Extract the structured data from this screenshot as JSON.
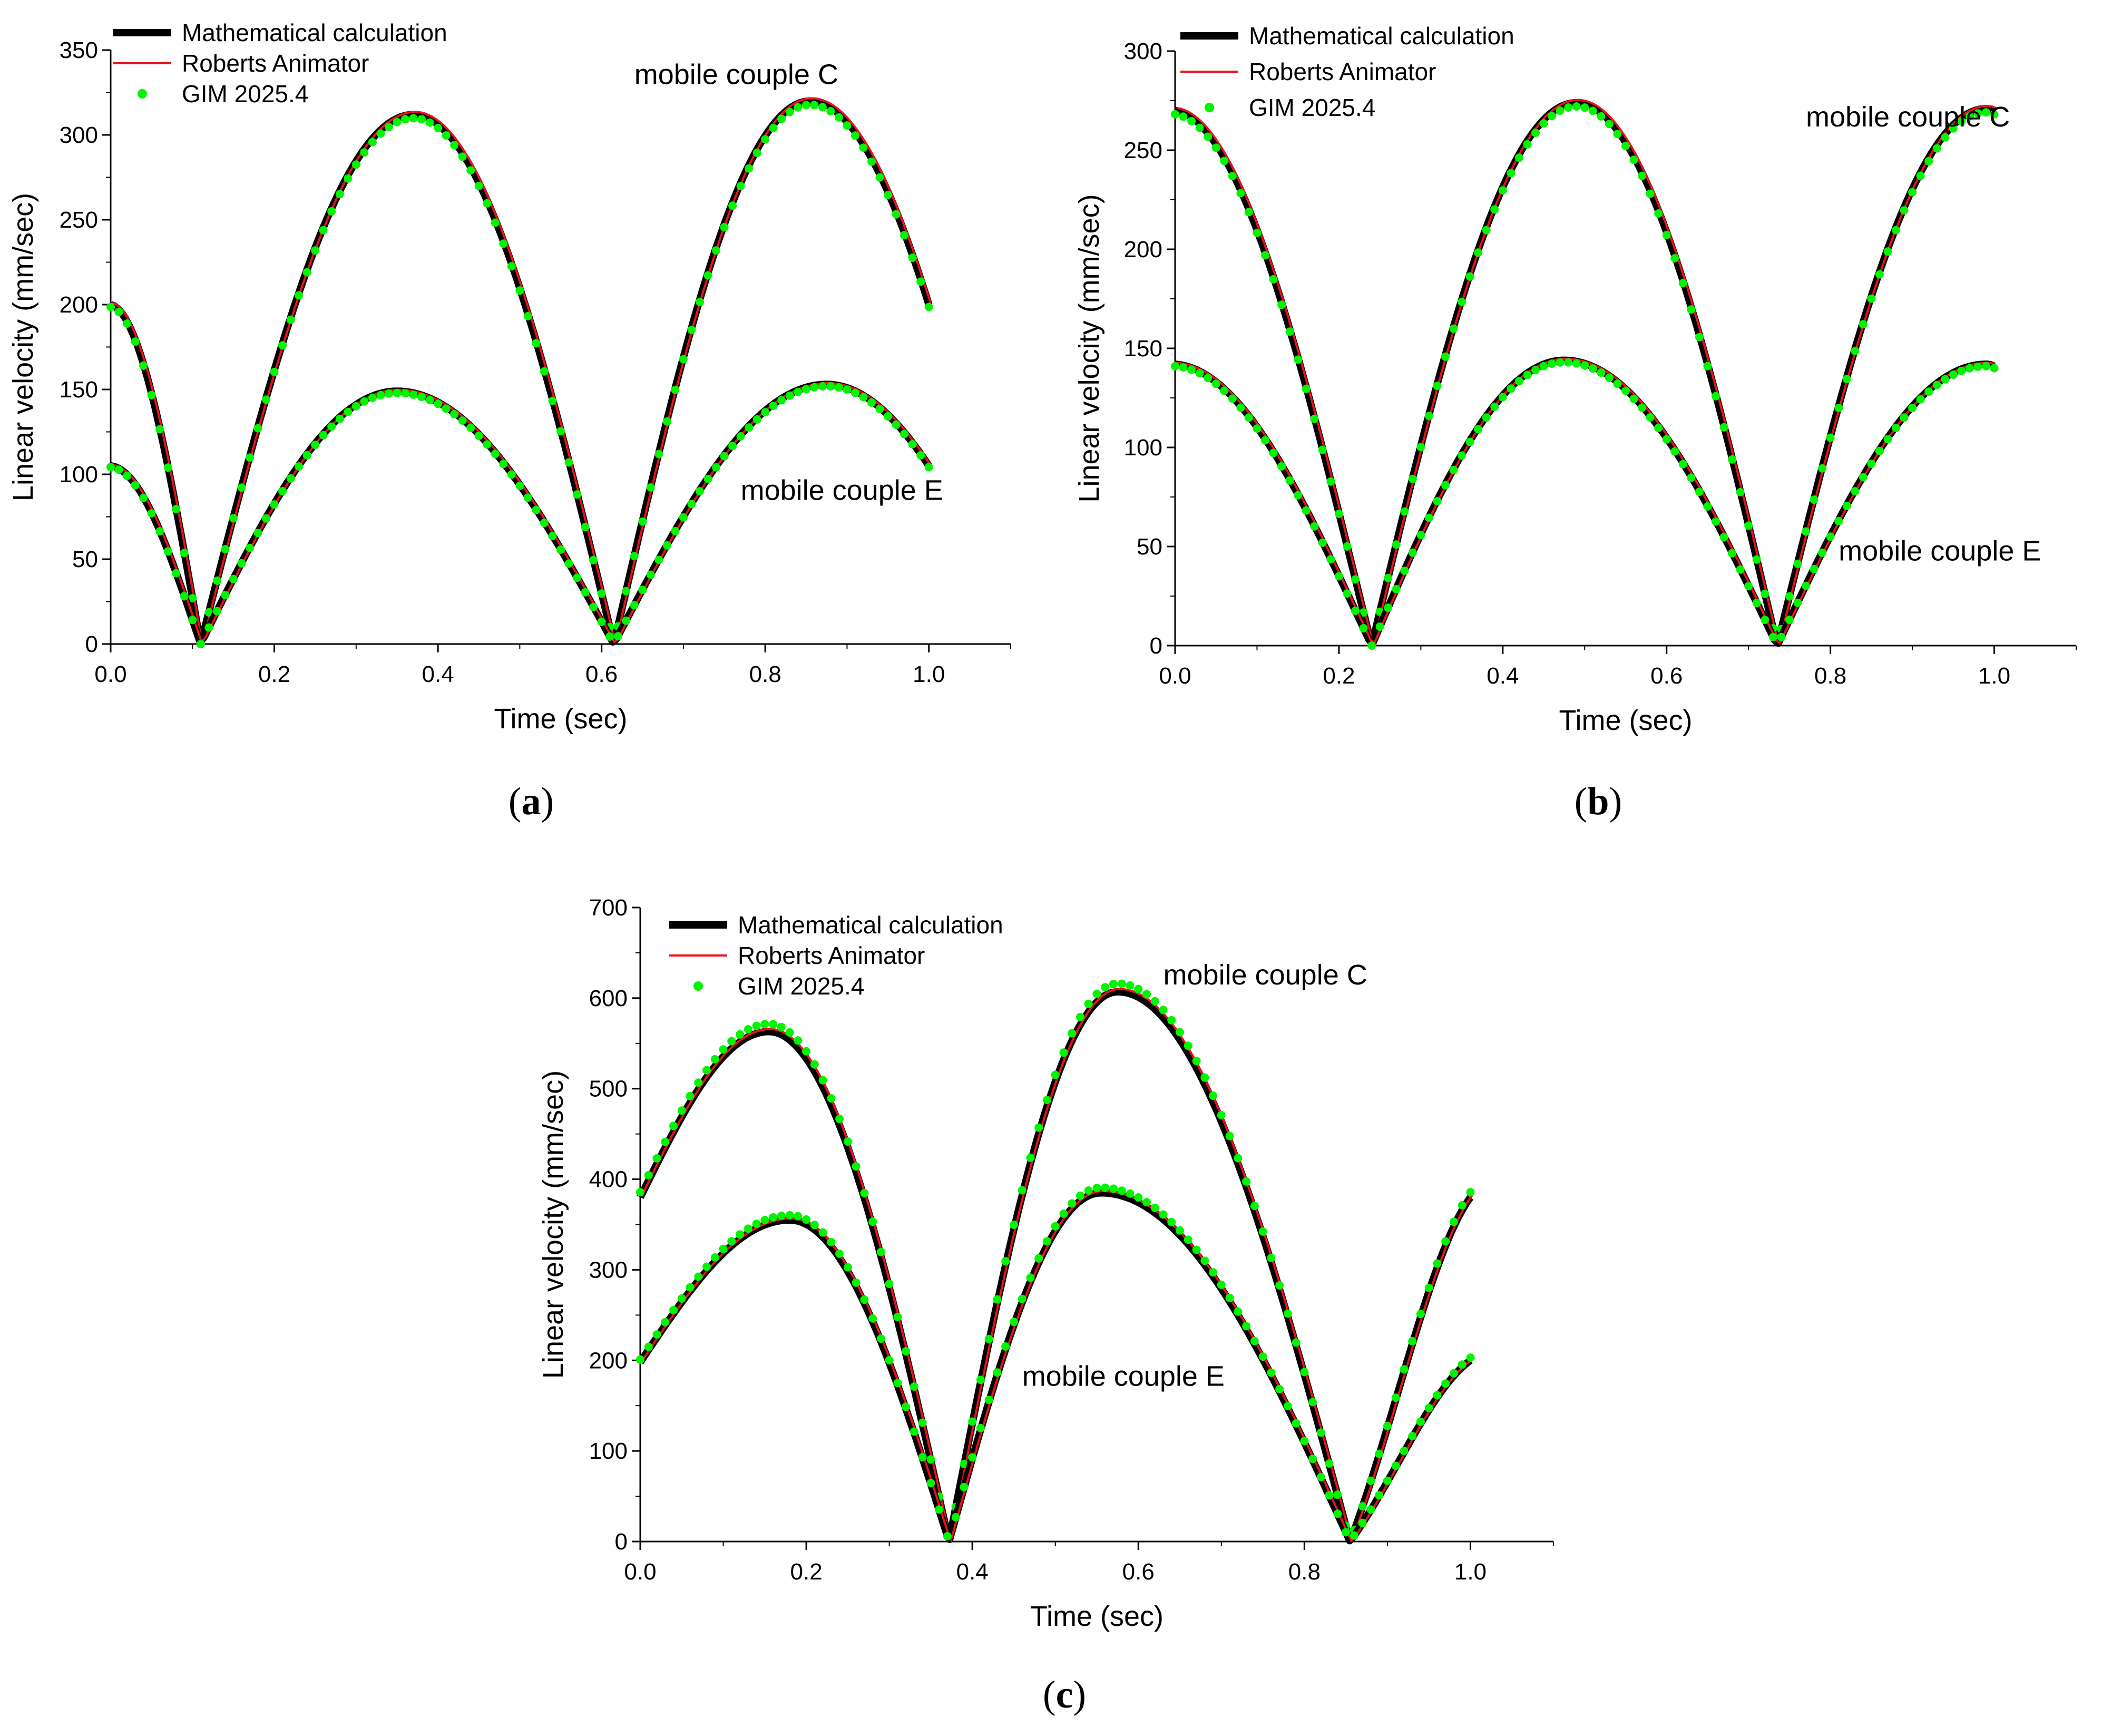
{
  "colors": {
    "math": "#000000",
    "roberts": "#e8131b",
    "gim": "#00f500"
  },
  "chart_data": [
    {
      "type": "line",
      "panel": "a",
      "caption_label": "a",
      "xlabel": "Time (sec)",
      "ylabel": "Linear velocity (mm/sec)",
      "xlim": [
        0,
        1.1
      ],
      "ylim": [
        0,
        350
      ],
      "xticks": [
        "0.0",
        "0.2",
        "0.4",
        "0.6",
        "0.8",
        "1.0"
      ],
      "xtick_values": [
        0,
        0.2,
        0.4,
        0.6,
        0.8,
        1.0
      ],
      "yticks": [
        "0",
        "50",
        "100",
        "150",
        "200",
        "250",
        "300",
        "350"
      ],
      "ytick_values": [
        0,
        50,
        100,
        150,
        200,
        250,
        300,
        350
      ],
      "legend": [
        "Mathematical calculation",
        "Roberts Animator",
        "GIM 2025.4"
      ],
      "annotations": [
        {
          "text": "mobile couple C",
          "x": 0.64,
          "y": 330
        },
        {
          "text": "mobile couple E",
          "x": 0.77,
          "y": 85
        }
      ],
      "series_params": {
        "C": {
          "start": 200,
          "zero1": 0.11,
          "peak1": {
            "x": 0.37,
            "y": 312
          },
          "zero2": 0.615,
          "peak2": {
            "x": 0.855,
            "y": 320
          },
          "end": {
            "x": 1.0,
            "y": 200
          }
        },
        "E": {
          "start": 105,
          "zero1": 0.11,
          "peak1": {
            "x": 0.35,
            "y": 149
          },
          "zero2": 0.615,
          "peak2": {
            "x": 0.875,
            "y": 153
          },
          "end": {
            "x": 1.0,
            "y": 105
          }
        }
      }
    },
    {
      "type": "line",
      "panel": "b",
      "caption_label": "b",
      "xlabel": "Time (sec)",
      "ylabel": "Linear velocity (mm/sec)",
      "xlim": [
        0,
        1.1
      ],
      "ylim": [
        0,
        300
      ],
      "xticks": [
        "0.0",
        "0.2",
        "0.4",
        "0.6",
        "0.8",
        "1.0"
      ],
      "xtick_values": [
        0,
        0.2,
        0.4,
        0.6,
        0.8,
        1.0
      ],
      "yticks": [
        "0",
        "50",
        "100",
        "150",
        "200",
        "250",
        "300"
      ],
      "ytick_values": [
        0,
        50,
        100,
        150,
        200,
        250,
        300
      ],
      "legend": [
        "Mathematical calculation",
        "Roberts Animator",
        "GIM 2025.4"
      ],
      "annotations": [
        {
          "text": "mobile couple C",
          "x": 0.77,
          "y": 262
        },
        {
          "text": "mobile couple E",
          "x": 0.81,
          "y": 43
        }
      ],
      "series_params": {
        "C": {
          "start": 270,
          "zero1": 0.24,
          "peak1": {
            "x": 0.49,
            "y": 274
          },
          "zero2": 0.735,
          "peak2": {
            "x": 0.99,
            "y": 271
          },
          "end": {
            "x": 1.0,
            "y": 270
          }
        },
        "E": {
          "start": 142,
          "zero1": 0.24,
          "peak1": {
            "x": 0.475,
            "y": 144
          },
          "zero2": 0.735,
          "peak2": {
            "x": 0.99,
            "y": 142
          },
          "end": {
            "x": 1.0,
            "y": 141
          }
        }
      }
    },
    {
      "type": "line",
      "panel": "c",
      "caption_label": "c",
      "xlabel": "Time (sec)",
      "ylabel": "Linear velocity (mm/sec)",
      "xlim": [
        0,
        1.1
      ],
      "ylim": [
        0,
        700
      ],
      "xticks": [
        "0.0",
        "0.2",
        "0.4",
        "0.6",
        "0.8",
        "1.0"
      ],
      "xtick_values": [
        0,
        0.2,
        0.4,
        0.6,
        0.8,
        1.0
      ],
      "yticks": [
        "0",
        "100",
        "200",
        "300",
        "400",
        "500",
        "600",
        "700"
      ],
      "ytick_values": [
        0,
        100,
        200,
        300,
        400,
        500,
        600,
        700
      ],
      "legend": [
        "Mathematical calculation",
        "Roberts Animator",
        "GIM 2025.4"
      ],
      "annotations": [
        {
          "text": "mobile couple C",
          "x": 0.63,
          "y": 615
        },
        {
          "text": "mobile couple E",
          "x": 0.46,
          "y": 172
        }
      ],
      "series_params": {
        "C": {
          "start": 380,
          "peak1": {
            "x": 0.155,
            "y": 563
          },
          "zero1": 0.372,
          "peak2": {
            "x": 0.575,
            "y": 607
          },
          "zero2": 0.855,
          "end": {
            "x": 1.0,
            "y": 380
          }
        },
        "E": {
          "start": 198,
          "peak1": {
            "x": 0.18,
            "y": 355
          },
          "zero1": 0.372,
          "peak2": {
            "x": 0.555,
            "y": 385
          },
          "zero2": 0.855,
          "end": {
            "x": 1.0,
            "y": 200
          }
        }
      }
    }
  ]
}
